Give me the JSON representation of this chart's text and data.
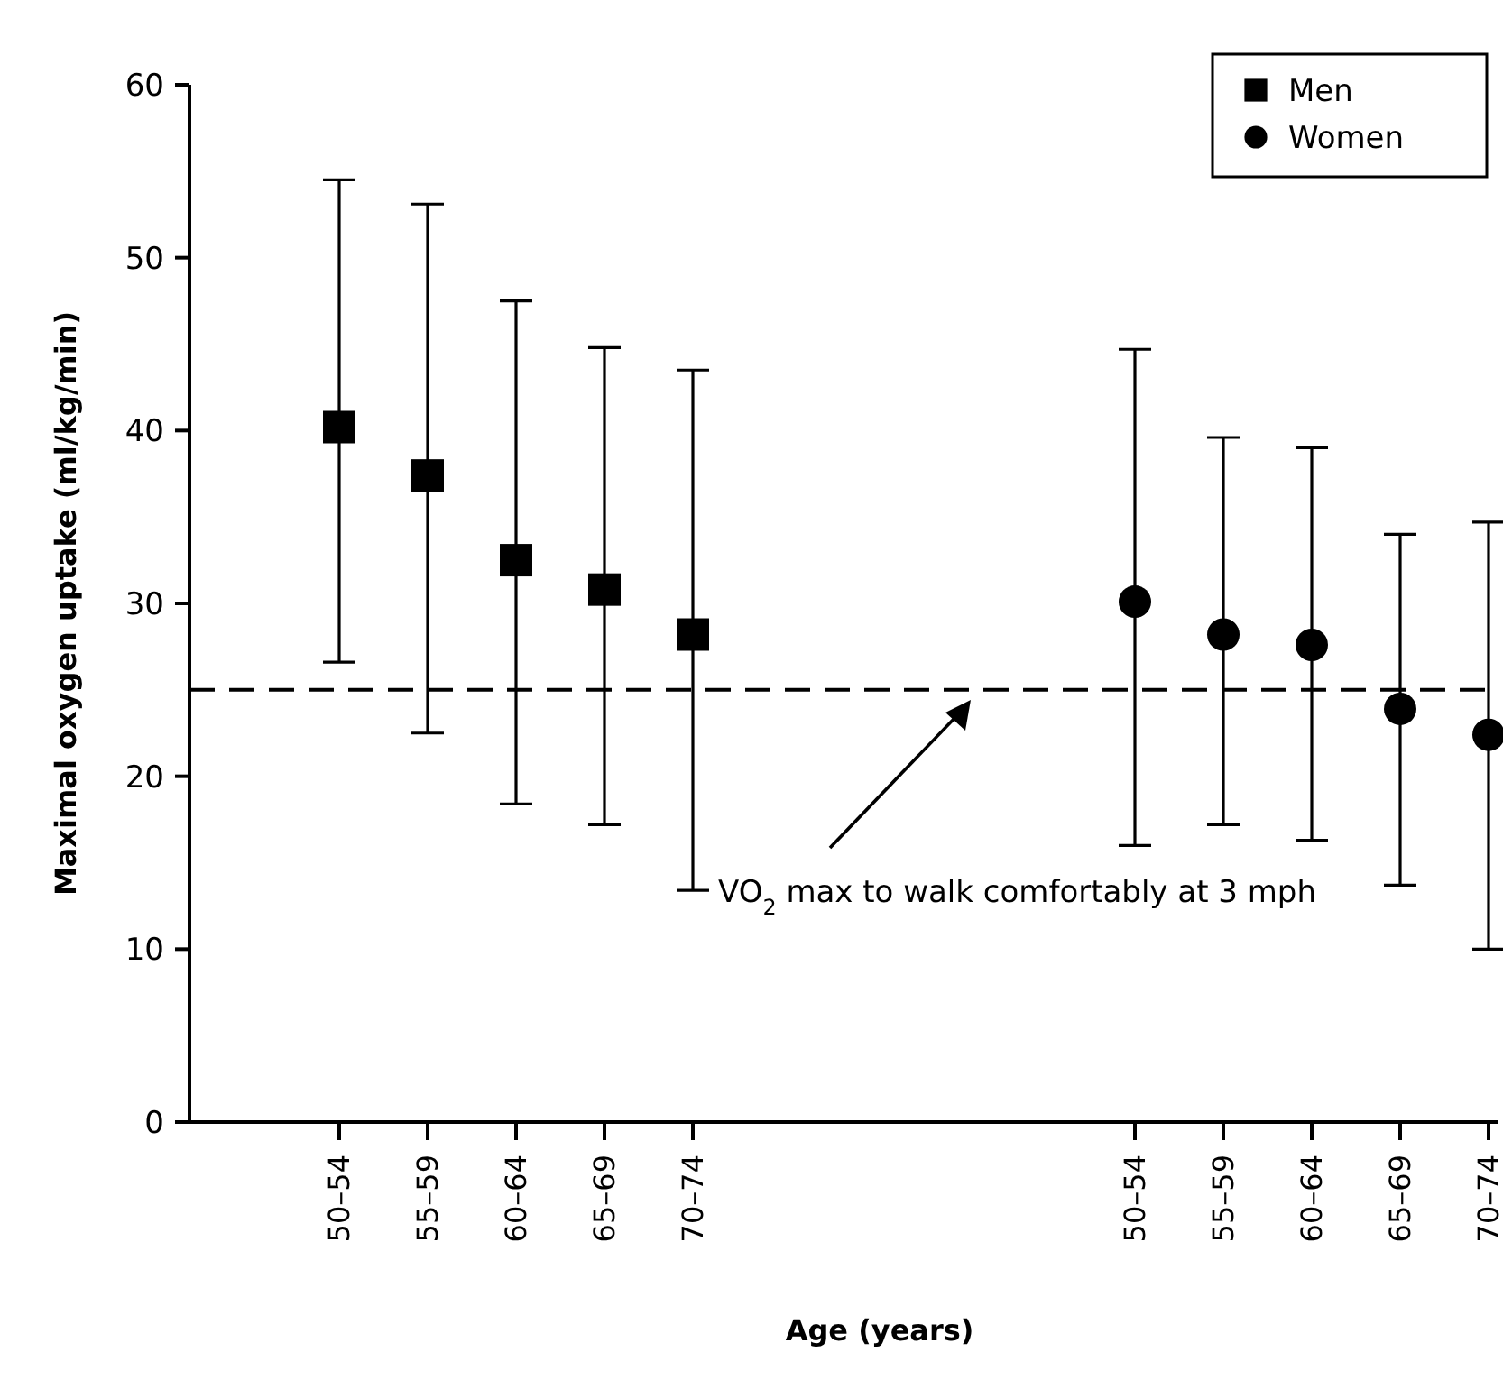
{
  "chart_data": {
    "type": "scatter",
    "xlabel": "Age (years)",
    "ylabel": "Maximal oxygen uptake (ml/kg/min)",
    "categories": [
      "50–54",
      "55–59",
      "60–64",
      "65–69",
      "70–74",
      null,
      null,
      null,
      null,
      "50–54",
      "55–59",
      "60–64",
      "65–69",
      "70–74"
    ],
    "series": [
      {
        "name": "Men",
        "color": "#000000",
        "marker": "square",
        "values": [
          40.2,
          37.4,
          32.5,
          30.8,
          28.2,
          null,
          null,
          null,
          null,
          null,
          null,
          null,
          null,
          null
        ],
        "errors": [
          [
            26.6,
            54.5
          ],
          [
            22.5,
            53.1
          ],
          [
            18.4,
            47.5
          ],
          [
            17.2,
            44.8
          ],
          [
            13.4,
            43.5
          ],
          null,
          null,
          null,
          null,
          null,
          null,
          null,
          null,
          null
        ]
      },
      {
        "name": "Women",
        "color": "#000000",
        "marker": "circle",
        "values": [
          null,
          null,
          null,
          null,
          null,
          null,
          null,
          null,
          null,
          30.1,
          28.2,
          27.6,
          23.9,
          22.4
        ],
        "errors": [
          null,
          null,
          null,
          null,
          null,
          null,
          null,
          null,
          null,
          [
            16.0,
            44.7
          ],
          [
            17.2,
            39.6
          ],
          [
            16.3,
            39.0
          ],
          [
            13.7,
            34.0
          ],
          [
            10.0,
            34.7
          ]
        ]
      }
    ],
    "ylim": [
      0,
      60
    ],
    "yticks": [
      0,
      10,
      20,
      30,
      40,
      50,
      60
    ],
    "grid": false,
    "legend": "top right",
    "ref_lines": [
      {
        "axis": "y",
        "value": 25,
        "line_style": "dashed",
        "color": "#000000"
      }
    ],
    "annotations": [
      "VO$_{2}$ max to walk comfortably at 3 mph"
    ]
  }
}
